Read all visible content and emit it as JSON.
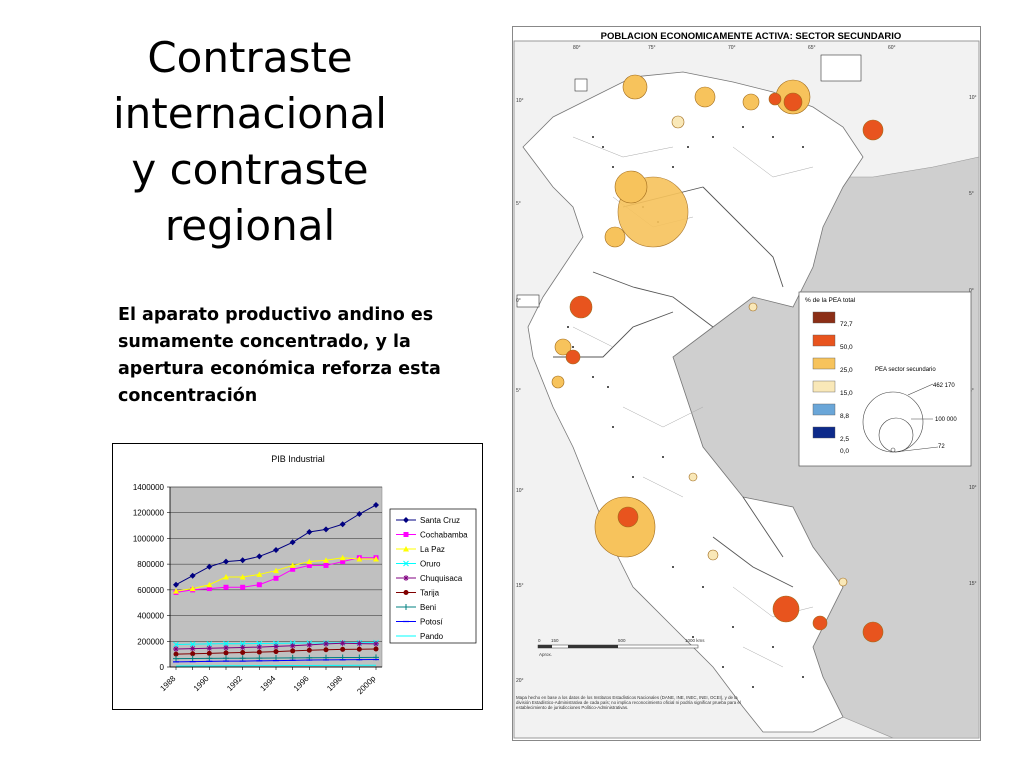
{
  "slide": {
    "title_lines": [
      "Contraste",
      "internacional",
      "y contraste",
      "regional"
    ],
    "body": "El aparato productivo andino es sumamente concentrado, y la apertura económica reforza esta concentración"
  },
  "chart_data": {
    "type": "line",
    "title": "PIB Industrial",
    "xlabel": "",
    "ylabel": "",
    "x": [
      "1988",
      "1989",
      "1990",
      "1991",
      "1992",
      "1993",
      "1994",
      "1995",
      "1996",
      "1997",
      "1998",
      "1999",
      "2000p"
    ],
    "x_tick_labels": [
      "1988",
      "1990",
      "1992",
      "1994",
      "1996",
      "1998",
      "2000p"
    ],
    "ylim": [
      0,
      1400000
    ],
    "y_ticks": [
      0,
      200000,
      400000,
      600000,
      800000,
      1000000,
      1200000,
      1400000
    ],
    "y_tick_labels": [
      "0",
      "200000",
      "400000",
      "600000",
      "800000",
      "1000000",
      "1200000",
      "1400000"
    ],
    "grid": true,
    "plot_background": "#c0c0c0",
    "legend_position": "right",
    "series": [
      {
        "name": "Santa Cruz",
        "color": "#000080",
        "marker": "diamond",
        "values": [
          640000,
          710000,
          780000,
          820000,
          830000,
          860000,
          910000,
          970000,
          1050000,
          1070000,
          1110000,
          1190000,
          1260000
        ]
      },
      {
        "name": "Cochabamba",
        "color": "#ff00ff",
        "marker": "square",
        "values": [
          580000,
          600000,
          610000,
          620000,
          620000,
          640000,
          690000,
          760000,
          790000,
          790000,
          820000,
          850000,
          850000
        ]
      },
      {
        "name": "La Paz",
        "color": "#ffff00",
        "marker": "triangle",
        "values": [
          590000,
          610000,
          640000,
          700000,
          700000,
          720000,
          750000,
          790000,
          820000,
          830000,
          850000,
          840000,
          840000
        ]
      },
      {
        "name": "Oruro",
        "color": "#00ffff",
        "marker": "x",
        "values": [
          175000,
          178000,
          180000,
          182000,
          181000,
          183000,
          184000,
          186000,
          187000,
          187000,
          188000,
          189000,
          190000
        ]
      },
      {
        "name": "Chuquisaca",
        "color": "#800080",
        "marker": "star",
        "values": [
          140000,
          143000,
          146000,
          149000,
          152000,
          155000,
          160000,
          165000,
          172000,
          180000,
          185000,
          182000,
          180000
        ]
      },
      {
        "name": "Tarija",
        "color": "#800000",
        "marker": "circle",
        "values": [
          100000,
          103000,
          106000,
          110000,
          113000,
          116000,
          120000,
          125000,
          130000,
          134000,
          137000,
          138000,
          140000
        ]
      },
      {
        "name": "Beni",
        "color": "#008080",
        "marker": "plus",
        "values": [
          65000,
          66000,
          67000,
          68000,
          68000,
          69000,
          70000,
          71000,
          72000,
          73000,
          74000,
          74000,
          75000
        ]
      },
      {
        "name": "Potosí",
        "color": "#0000ff",
        "marker": "dash",
        "values": [
          40000,
          42000,
          44000,
          46000,
          46000,
          48000,
          50000,
          52000,
          54000,
          55000,
          56000,
          57000,
          58000
        ]
      },
      {
        "name": "Pando",
        "color": "#00ffff",
        "marker": "none",
        "values": [
          8000,
          8500,
          9000,
          9500,
          10000,
          10500,
          11000,
          11500,
          12000,
          12500,
          13000,
          13500,
          14000
        ]
      }
    ]
  },
  "map": {
    "title": "POBLACION ECONOMICAMENTE ACTIVA: SECTOR SECUNDARIO",
    "legend_title": "% de la PEA total",
    "legend_classes": [
      {
        "value": "72,7",
        "color": "#8b2e16"
      },
      {
        "value": "50,0",
        "color": "#e8541e"
      },
      {
        "value": "25,0",
        "color": "#f7c35c"
      },
      {
        "value": "15,0",
        "color": "#f9e8b8"
      },
      {
        "value": "8,8",
        "color": "#6aa6d8"
      },
      {
        "value": "2,5",
        "color": "#0d2a8a"
      },
      {
        "value": "0,0",
        "color": ""
      }
    ],
    "size_legend_title": "PEA sector secundario",
    "size_legend_values": [
      "462 170",
      "100 000",
      "72"
    ],
    "scale_labels": [
      "0",
      "150",
      "500",
      "1000 kms"
    ],
    "scale_unit": "Aprox.",
    "lon_labels_top": [
      "80°",
      "75°",
      "70°",
      "65°",
      "60°"
    ],
    "lat_labels_left": [
      "10°",
      "5°",
      "0°",
      "5°",
      "10°",
      "15°",
      "20°"
    ],
    "lat_labels_right": [
      "10°",
      "5°",
      "0°",
      "5°",
      "10°",
      "15°"
    ],
    "source_note": "Mapa hecho en base a los datos de los Institutos Estadísticos Nacionales (DANE, INE, INEC, INEI, OCEI), y de la división Estadístico-Administrativa de cada país; no implica reconocimiento oficial ni podría significar prueba para el establecimiento de jurisdicciones Político-Administrativas."
  }
}
